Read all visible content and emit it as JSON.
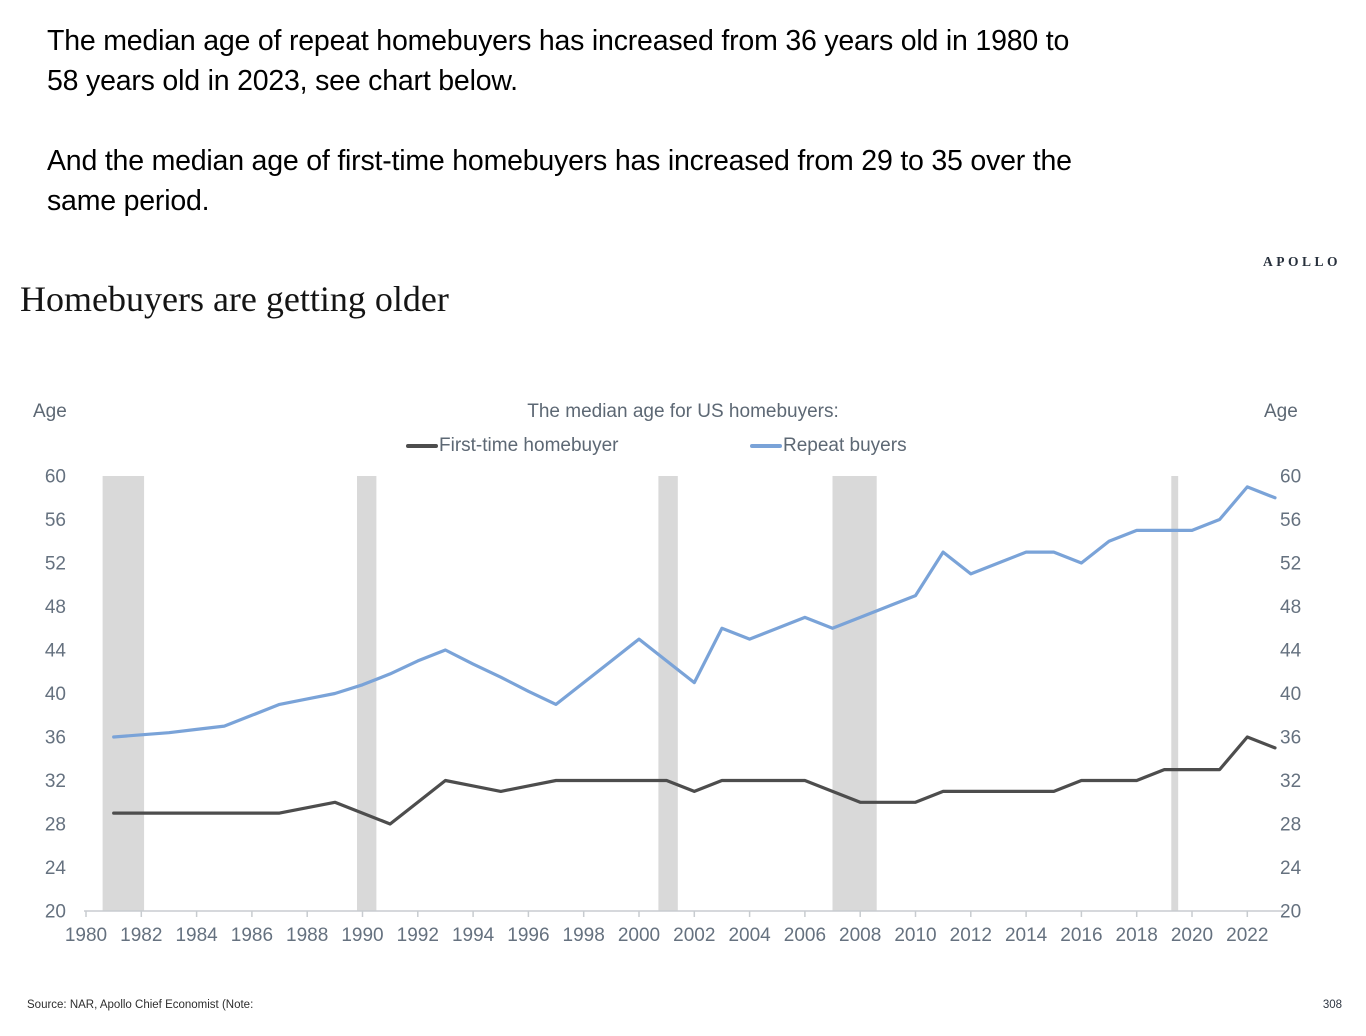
{
  "intro": {
    "p1_line1": "The median age of repeat homebuyers has increased from 36 years old in 1980 to",
    "p1_line2": "58 years old in 2023, see chart below.",
    "p2_line1": "And the median age of first-time homebuyers has increased from 29 to 35 over the",
    "p2_line2": "same period."
  },
  "brand": "APOLLO",
  "chart": {
    "title": "Homebuyers are getting older",
    "subtitle": "The median age for US homebuyers:",
    "age_label_left": "Age",
    "age_label_right": "Age",
    "legend": {
      "first_time_label": "First-time homebuyer",
      "repeat_label": "Repeat buyers"
    }
  },
  "footer": {
    "source": "Source: NAR, Apollo Chief Economist (Note:",
    "page_number": "308"
  },
  "chart_data": {
    "type": "line",
    "title": "Homebuyers are getting older",
    "subtitle": "The median age for US homebuyers:",
    "xlabel": "",
    "ylabel": "Age",
    "ylim": [
      20,
      60
    ],
    "yticks": [
      20,
      24,
      28,
      32,
      36,
      40,
      44,
      48,
      52,
      56,
      60
    ],
    "xlim": [
      1980,
      2023.5
    ],
    "xticks": [
      1980,
      1982,
      1984,
      1986,
      1988,
      1990,
      1992,
      1994,
      1996,
      1998,
      2000,
      2002,
      2004,
      2006,
      2008,
      2010,
      2012,
      2014,
      2016,
      2018,
      2020,
      2022
    ],
    "grid": false,
    "legend_position": "top",
    "x": [
      1981,
      1982,
      1983,
      1984,
      1985,
      1986,
      1987,
      1988,
      1989,
      1990,
      1991,
      1992,
      1993,
      1994,
      1995,
      1996,
      1997,
      1998,
      1999,
      2000,
      2001,
      2002,
      2003,
      2004,
      2005,
      2006,
      2007,
      2008,
      2009,
      2010,
      2011,
      2012,
      2013,
      2014,
      2015,
      2016,
      2017,
      2018,
      2019,
      2020,
      2021,
      2022,
      2023
    ],
    "series": [
      {
        "name": "First-time homebuyer",
        "color": "#4d4d4d",
        "values": [
          29,
          29,
          29,
          29,
          29,
          29,
          29,
          29.5,
          30,
          29,
          28,
          30,
          32,
          31.5,
          31,
          31.5,
          32,
          32,
          32,
          32,
          32,
          31,
          32,
          32,
          32,
          32,
          31,
          30,
          30,
          30,
          31,
          31,
          31,
          31,
          31,
          32,
          32,
          32,
          33,
          33,
          33,
          36,
          35
        ]
      },
      {
        "name": "Repeat buyers",
        "color": "#7aa3d8",
        "values": [
          36,
          36.2,
          36.4,
          36.7,
          37,
          38,
          39,
          39.5,
          40,
          40.8,
          41.8,
          43,
          44,
          42.7,
          41.5,
          40.2,
          39,
          41,
          43,
          45,
          43,
          41,
          46,
          45,
          46,
          47,
          46,
          47,
          48,
          49,
          53,
          51,
          52,
          53,
          53,
          52,
          54,
          55,
          55,
          55,
          56,
          59,
          58
        ]
      }
    ],
    "recession_bands": [
      [
        1980.6,
        1982.1
      ],
      [
        1989.8,
        1990.5
      ],
      [
        2000.7,
        2001.4
      ],
      [
        2007.0,
        2008.6
      ],
      [
        2019.25,
        2019.5
      ]
    ],
    "band_color": "#d9d9d9",
    "axis_color": "#c8ccd0",
    "tick_label_color": "#65717f"
  }
}
